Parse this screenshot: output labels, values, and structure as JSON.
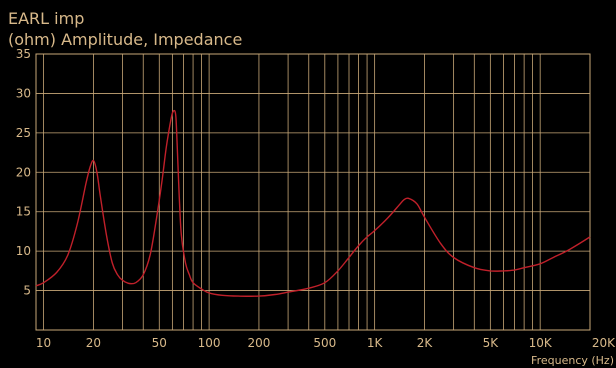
{
  "chart_data": {
    "type": "line",
    "title": "EARL  imp",
    "subtitle": "(ohm)  Amplitude, Impedance",
    "xlabel": "Frequency  (Hz)",
    "ylabel": "",
    "x_scale": "log",
    "xlim": [
      9,
      20000
    ],
    "ylim": [
      0,
      35
    ],
    "x_tick_values": [
      10,
      20,
      50,
      100,
      200,
      500,
      1000,
      2000,
      5000,
      10000,
      20000
    ],
    "x_tick_labels": [
      "10",
      "20",
      "50",
      "100",
      "200",
      "500",
      "1K",
      "2K",
      "5K",
      "10K",
      "20K"
    ],
    "y_tick_values": [
      5,
      10,
      15,
      20,
      25,
      30,
      35
    ],
    "y_tick_labels": [
      "5",
      "10",
      "15",
      "20",
      "25",
      "30",
      "35"
    ],
    "grid": true,
    "colors": {
      "background": "#000000",
      "grid": "#c8a878",
      "axis": "#c8a878",
      "series": "#c0202a",
      "text": "#d8b98a"
    },
    "series": [
      {
        "x": [
          9,
          10,
          12,
          14,
          16,
          18,
          19,
          20,
          21,
          22,
          24,
          26,
          28,
          30,
          33,
          36,
          40,
          44,
          48,
          52,
          55,
          58,
          60,
          62,
          63,
          64,
          66,
          68,
          72,
          76,
          80,
          90,
          100,
          120,
          150,
          200,
          250,
          300,
          400,
          500,
          600,
          700,
          800,
          900,
          1000,
          1200,
          1400,
          1500,
          1600,
          1800,
          2000,
          2500,
          3000,
          4000,
          5000,
          6000,
          7000,
          8000,
          10000,
          12000,
          15000,
          20000
        ],
        "y": [
          5.6,
          6,
          7.3,
          9.5,
          13.5,
          18.5,
          20.5,
          21.5,
          20,
          17,
          12,
          8.5,
          7,
          6.3,
          5.9,
          6,
          7,
          9.5,
          14,
          19,
          23,
          26,
          27.5,
          27.8,
          27,
          24,
          17,
          12,
          8.5,
          7,
          6,
          5.2,
          4.7,
          4.4,
          4.3,
          4.3,
          4.5,
          4.8,
          5.3,
          6,
          7.5,
          9.2,
          10.7,
          11.8,
          12.6,
          14.2,
          15.8,
          16.5,
          16.7,
          16,
          14.3,
          11,
          9.2,
          7.9,
          7.5,
          7.5,
          7.6,
          7.9,
          8.4,
          9.2,
          10.2,
          11.8
        ]
      }
    ]
  }
}
